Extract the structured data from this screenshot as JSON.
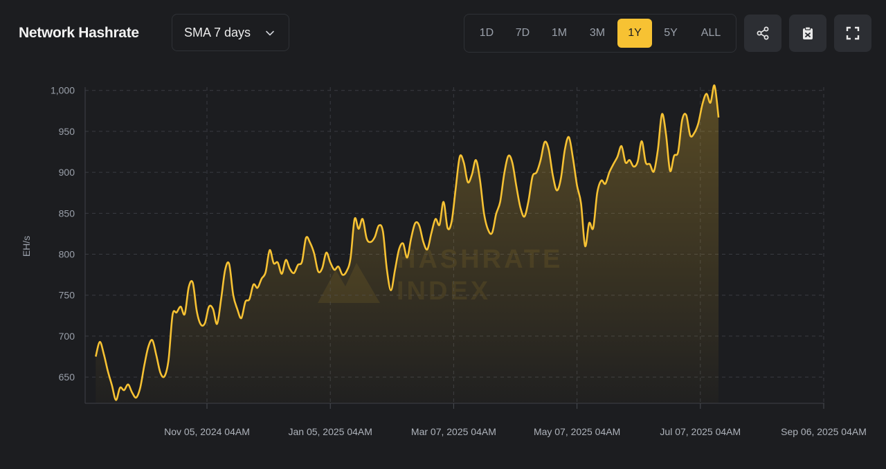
{
  "header": {
    "title": "Network Hashrate",
    "sma_label": "SMA 7 days",
    "ranges": [
      "1D",
      "7D",
      "1M",
      "3M",
      "1Y",
      "5Y",
      "ALL"
    ],
    "active_range": "1Y"
  },
  "watermark": [
    "HASHRATE",
    "INDEX"
  ],
  "colors": {
    "accent": "#f7c233",
    "background": "#1c1d20",
    "grid": "#3a3c42"
  },
  "icons": [
    "share-icon",
    "clipboard-icon",
    "fullscreen-icon",
    "chevron-down-icon"
  ],
  "chart_data": {
    "type": "area",
    "title": "Network Hashrate",
    "ylabel": "EH/s",
    "xlabel": "",
    "ylim": [
      618,
      1004
    ],
    "yticks": [
      650,
      700,
      750,
      800,
      850,
      900,
      950,
      1000
    ],
    "ytick_labels": [
      "650",
      "700",
      "750",
      "800",
      "850",
      "900",
      "950",
      "1,000"
    ],
    "xticks": [
      "Nov 05, 2024 04AM",
      "Jan 05, 2025 04AM",
      "Mar 07, 2025 04AM",
      "May 07, 2025 04AM",
      "Jul 07, 2025 04AM",
      "Sep 06, 2025 04AM"
    ],
    "xtick_dates": [
      "2024-11-05",
      "2025-01-05",
      "2025-03-07",
      "2025-05-07",
      "2025-07-07",
      "2025-09-06"
    ],
    "grid": true,
    "series": [
      {
        "points": [
          [
            "2024-09-11",
            675
          ],
          [
            "2024-09-13",
            693
          ],
          [
            "2024-09-15",
            678
          ],
          [
            "2024-09-17",
            657
          ],
          [
            "2024-09-19",
            640
          ],
          [
            "2024-09-21",
            622
          ],
          [
            "2024-09-23",
            637
          ],
          [
            "2024-09-25",
            634
          ],
          [
            "2024-09-27",
            641
          ],
          [
            "2024-09-29",
            631
          ],
          [
            "2024-10-01",
            625
          ],
          [
            "2024-10-03",
            637
          ],
          [
            "2024-10-05",
            664
          ],
          [
            "2024-10-07",
            687
          ],
          [
            "2024-10-09",
            695
          ],
          [
            "2024-10-11",
            676
          ],
          [
            "2024-10-13",
            655
          ],
          [
            "2024-10-15",
            651
          ],
          [
            "2024-10-17",
            671
          ],
          [
            "2024-10-19",
            726
          ],
          [
            "2024-10-21",
            729
          ],
          [
            "2024-10-23",
            736
          ],
          [
            "2024-10-25",
            727
          ],
          [
            "2024-10-27",
            760
          ],
          [
            "2024-10-29",
            765
          ],
          [
            "2024-10-31",
            730
          ],
          [
            "2024-11-02",
            714
          ],
          [
            "2024-11-04",
            716
          ],
          [
            "2024-11-06",
            736
          ],
          [
            "2024-11-08",
            733
          ],
          [
            "2024-11-10",
            715
          ],
          [
            "2024-11-12",
            745
          ],
          [
            "2024-11-14",
            781
          ],
          [
            "2024-11-16",
            788
          ],
          [
            "2024-11-18",
            750
          ],
          [
            "2024-11-20",
            733
          ],
          [
            "2024-11-22",
            722
          ],
          [
            "2024-11-24",
            742
          ],
          [
            "2024-11-26",
            745
          ],
          [
            "2024-11-28",
            763
          ],
          [
            "2024-11-30",
            759
          ],
          [
            "2024-12-02",
            770
          ],
          [
            "2024-12-04",
            778
          ],
          [
            "2024-12-06",
            805
          ],
          [
            "2024-12-08",
            789
          ],
          [
            "2024-12-10",
            790
          ],
          [
            "2024-12-12",
            776
          ],
          [
            "2024-12-14",
            793
          ],
          [
            "2024-12-16",
            782
          ],
          [
            "2024-12-18",
            777
          ],
          [
            "2024-12-20",
            787
          ],
          [
            "2024-12-22",
            791
          ],
          [
            "2024-12-24",
            820
          ],
          [
            "2024-12-26",
            814
          ],
          [
            "2024-12-28",
            801
          ],
          [
            "2024-12-30",
            779
          ],
          [
            "2025-01-01",
            783
          ],
          [
            "2025-01-03",
            802
          ],
          [
            "2025-01-05",
            790
          ],
          [
            "2025-01-07",
            781
          ],
          [
            "2025-01-09",
            785
          ],
          [
            "2025-01-11",
            775
          ],
          [
            "2025-01-13",
            779
          ],
          [
            "2025-01-15",
            795
          ],
          [
            "2025-01-17",
            843
          ],
          [
            "2025-01-19",
            831
          ],
          [
            "2025-01-21",
            843
          ],
          [
            "2025-01-23",
            819
          ],
          [
            "2025-01-25",
            815
          ],
          [
            "2025-01-27",
            821
          ],
          [
            "2025-01-29",
            835
          ],
          [
            "2025-01-31",
            828
          ],
          [
            "2025-02-02",
            781
          ],
          [
            "2025-02-04",
            756
          ],
          [
            "2025-02-06",
            781
          ],
          [
            "2025-02-08",
            806
          ],
          [
            "2025-02-10",
            813
          ],
          [
            "2025-02-12",
            796
          ],
          [
            "2025-02-14",
            820
          ],
          [
            "2025-02-16",
            838
          ],
          [
            "2025-02-18",
            835
          ],
          [
            "2025-02-20",
            815
          ],
          [
            "2025-02-22",
            806
          ],
          [
            "2025-02-24",
            826
          ],
          [
            "2025-02-26",
            843
          ],
          [
            "2025-02-28",
            836
          ],
          [
            "2025-03-02",
            864
          ],
          [
            "2025-03-04",
            832
          ],
          [
            "2025-03-06",
            840
          ],
          [
            "2025-03-08",
            880
          ],
          [
            "2025-03-10",
            919
          ],
          [
            "2025-03-12",
            912
          ],
          [
            "2025-03-14",
            888
          ],
          [
            "2025-03-16",
            897
          ],
          [
            "2025-03-18",
            915
          ],
          [
            "2025-03-20",
            891
          ],
          [
            "2025-03-22",
            850
          ],
          [
            "2025-03-24",
            830
          ],
          [
            "2025-03-26",
            826
          ],
          [
            "2025-03-28",
            849
          ],
          [
            "2025-03-30",
            864
          ],
          [
            "2025-04-01",
            898
          ],
          [
            "2025-04-03",
            920
          ],
          [
            "2025-04-05",
            912
          ],
          [
            "2025-04-07",
            883
          ],
          [
            "2025-04-09",
            857
          ],
          [
            "2025-04-11",
            846
          ],
          [
            "2025-04-13",
            865
          ],
          [
            "2025-04-15",
            895
          ],
          [
            "2025-04-17",
            900
          ],
          [
            "2025-04-19",
            915
          ],
          [
            "2025-04-21",
            937
          ],
          [
            "2025-04-23",
            928
          ],
          [
            "2025-04-25",
            897
          ],
          [
            "2025-04-27",
            878
          ],
          [
            "2025-04-29",
            892
          ],
          [
            "2025-05-01",
            928
          ],
          [
            "2025-05-03",
            943
          ],
          [
            "2025-05-05",
            917
          ],
          [
            "2025-05-07",
            884
          ],
          [
            "2025-05-09",
            862
          ],
          [
            "2025-05-11",
            810
          ],
          [
            "2025-05-13",
            838
          ],
          [
            "2025-05-15",
            832
          ],
          [
            "2025-05-17",
            875
          ],
          [
            "2025-05-19",
            890
          ],
          [
            "2025-05-21",
            886
          ],
          [
            "2025-05-23",
            900
          ],
          [
            "2025-05-25",
            910
          ],
          [
            "2025-05-27",
            919
          ],
          [
            "2025-05-29",
            932
          ],
          [
            "2025-05-31",
            912
          ],
          [
            "2025-06-02",
            915
          ],
          [
            "2025-06-04",
            907
          ],
          [
            "2025-06-06",
            913
          ],
          [
            "2025-06-08",
            938
          ],
          [
            "2025-06-10",
            912
          ],
          [
            "2025-06-12",
            910
          ],
          [
            "2025-06-14",
            901
          ],
          [
            "2025-06-16",
            928
          ],
          [
            "2025-06-18",
            971
          ],
          [
            "2025-06-20",
            947
          ],
          [
            "2025-06-22",
            902
          ],
          [
            "2025-06-24",
            920
          ],
          [
            "2025-06-26",
            925
          ],
          [
            "2025-06-28",
            964
          ],
          [
            "2025-06-30",
            970
          ],
          [
            "2025-07-02",
            945
          ],
          [
            "2025-07-04",
            948
          ],
          [
            "2025-07-06",
            960
          ],
          [
            "2025-07-08",
            983
          ],
          [
            "2025-07-10",
            996
          ],
          [
            "2025-07-12",
            985
          ],
          [
            "2025-07-14",
            1006
          ],
          [
            "2025-07-16",
            967
          ]
        ]
      }
    ]
  }
}
